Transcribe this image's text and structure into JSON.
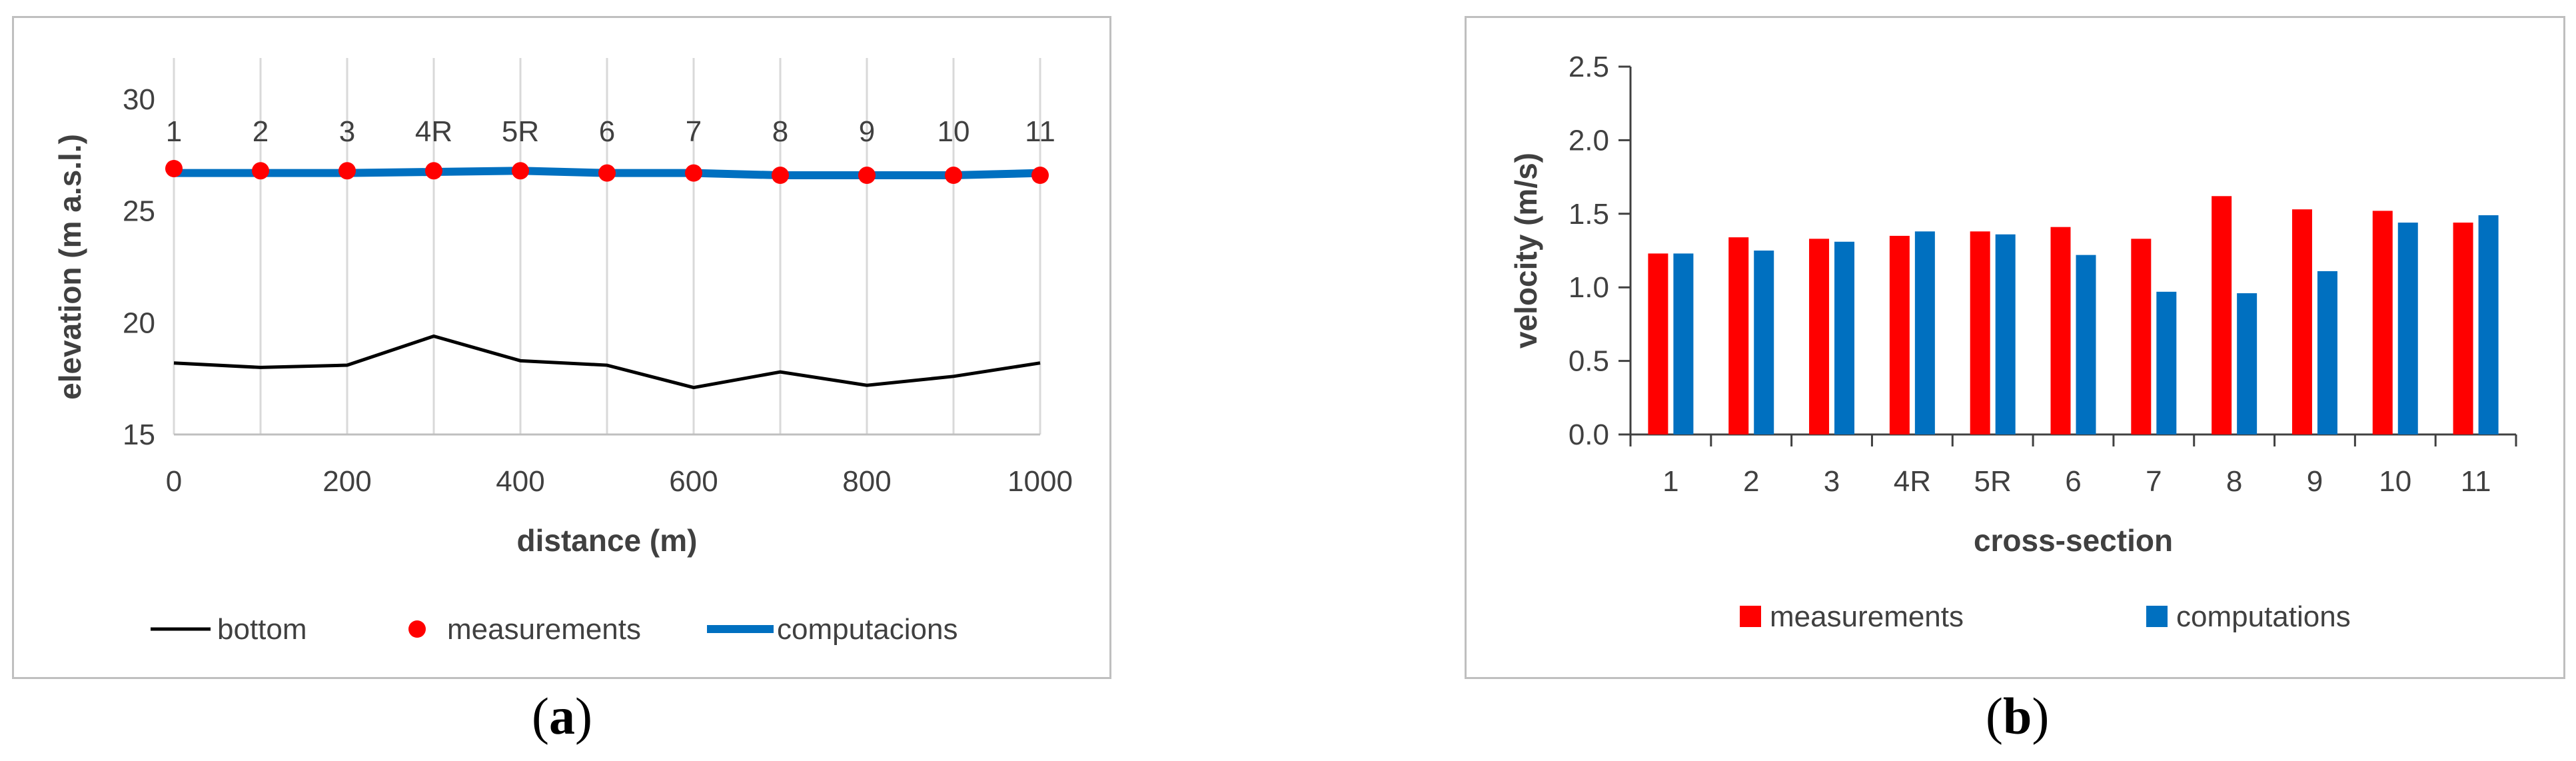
{
  "captions": {
    "a_open": "(",
    "a_letter": "a",
    "a_close": ")",
    "b_open": "(",
    "b_letter": "b",
    "b_close": ")"
  },
  "chart_data": [
    {
      "type": "line",
      "xlabel": "distance (m)",
      "ylabel": "elevation (m a.s.l.)",
      "xlim": [
        0,
        1000
      ],
      "ylim": [
        15,
        30
      ],
      "xticks": [
        0,
        200,
        400,
        600,
        800,
        1000
      ],
      "yticks": [
        15,
        20,
        25,
        30
      ],
      "grid": "vertical",
      "legend_position": "bottom",
      "x": [
        0,
        100,
        200,
        300,
        400,
        500,
        600,
        700,
        800,
        900,
        1000
      ],
      "point_labels": [
        "1",
        "2",
        "3",
        "4R",
        "5R",
        "6",
        "7",
        "8",
        "9",
        "10",
        "11"
      ],
      "series": [
        {
          "name": "bottom",
          "style": "line",
          "color": "#000000",
          "values": [
            18.2,
            18.0,
            18.1,
            19.4,
            18.3,
            18.1,
            17.1,
            17.8,
            17.2,
            17.6,
            18.2
          ]
        },
        {
          "name": "measurements",
          "style": "marker",
          "color": "#ff0000",
          "values": [
            26.9,
            26.8,
            26.8,
            26.8,
            26.8,
            26.7,
            26.7,
            26.6,
            26.6,
            26.6,
            26.6
          ]
        },
        {
          "name": "computacions",
          "style": "line",
          "color": "#0070c0",
          "values": [
            26.7,
            26.7,
            26.7,
            26.75,
            26.8,
            26.7,
            26.7,
            26.6,
            26.6,
            26.6,
            26.7
          ]
        }
      ]
    },
    {
      "type": "bar",
      "xlabel": "cross-section",
      "ylabel": "velocity (m/s)",
      "ylim": [
        0,
        2.5
      ],
      "yticks": [
        "0.0",
        "0.5",
        "1.0",
        "1.5",
        "2.0",
        "2.5"
      ],
      "grid": "off",
      "legend_position": "bottom",
      "categories": [
        "1",
        "2",
        "3",
        "4R",
        "5R",
        "6",
        "7",
        "8",
        "9",
        "10",
        "11"
      ],
      "series": [
        {
          "name": "measurements",
          "color": "#ff0000",
          "values": [
            1.23,
            1.34,
            1.33,
            1.35,
            1.38,
            1.41,
            1.33,
            1.62,
            1.53,
            1.52,
            1.44
          ]
        },
        {
          "name": "computations",
          "color": "#0070c0",
          "values": [
            1.23,
            1.25,
            1.31,
            1.38,
            1.36,
            1.22,
            0.97,
            0.96,
            1.11,
            1.44,
            1.49
          ]
        }
      ]
    }
  ]
}
